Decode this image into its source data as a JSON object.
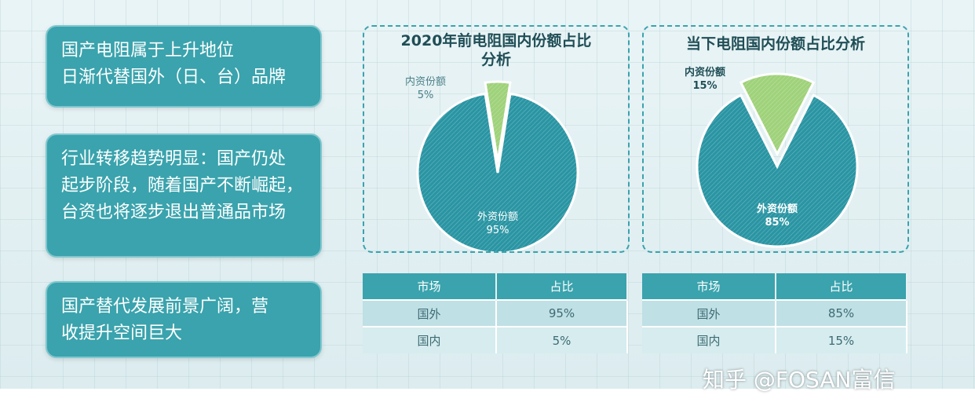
{
  "cards": [
    {
      "lines": [
        "国产电阻属于上升地位",
        "日渐代替国外（日、台）品牌"
      ]
    },
    {
      "lines": [
        "行业转移趋势明显：国产仍处",
        "起步阶段，随着国产不断崛起，",
        "台资也将逐步退出普通品市场"
      ]
    },
    {
      "lines": [
        "国产替代发展前景广阔，营",
        "收提升空间巨大"
      ]
    }
  ],
  "chart_data": [
    {
      "type": "pie",
      "title": "2020年前电阻国内份额占比分析",
      "slices": [
        {
          "label": "内资份额",
          "value": 5,
          "value_label": "5%",
          "color": "#9fd27a"
        },
        {
          "label": "外资份额",
          "value": 95,
          "value_label": "95%",
          "color": "#2a95a3"
        }
      ]
    },
    {
      "type": "pie",
      "title": "当下电阻国内份额占比分析",
      "slices": [
        {
          "label": "内资份额",
          "value": 15,
          "value_label": "15%",
          "color": "#9fd27a"
        },
        {
          "label": "外资份额",
          "value": 85,
          "value_label": "85%",
          "color": "#2a95a3"
        }
      ]
    },
    {
      "type": "table",
      "headers": [
        "市场",
        "占比"
      ],
      "rows": [
        [
          "国外",
          "95%"
        ],
        [
          "国内",
          "5%"
        ]
      ]
    },
    {
      "type": "table",
      "headers": [
        "市场",
        "占比"
      ],
      "rows": [
        [
          "国外",
          "85%"
        ],
        [
          "国内",
          "15%"
        ]
      ]
    }
  ],
  "watermark": "知乎 @FOSAN富信"
}
